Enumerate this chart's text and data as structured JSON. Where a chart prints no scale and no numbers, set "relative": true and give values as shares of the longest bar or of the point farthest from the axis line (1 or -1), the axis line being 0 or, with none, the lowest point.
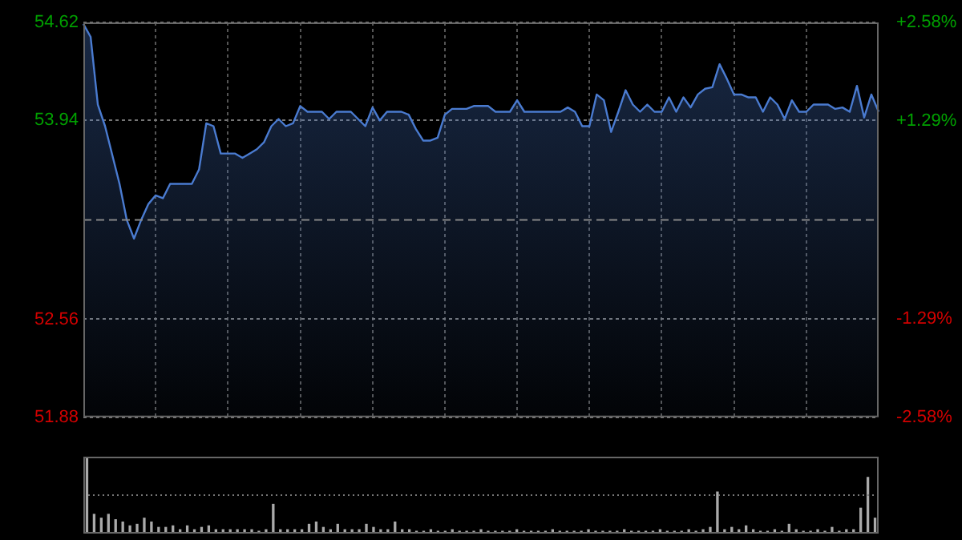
{
  "chart_data": [
    {
      "type": "area",
      "categories": [
        null,
        null,
        null,
        null,
        null,
        null,
        null,
        null,
        null,
        null,
        null,
        null,
        null,
        null,
        null,
        null,
        null,
        null,
        null,
        null,
        null,
        null,
        null,
        null,
        null,
        null,
        null,
        null,
        null,
        null,
        null,
        null,
        null,
        null,
        null,
        null,
        null,
        null,
        null,
        null,
        null,
        null,
        null,
        null,
        null,
        null,
        null,
        null,
        null,
        null,
        null,
        null,
        null,
        null,
        null,
        null,
        null,
        null,
        null,
        null,
        null,
        null,
        null,
        null,
        null,
        null,
        null,
        null,
        null,
        null,
        null,
        null,
        null,
        null,
        null,
        null,
        null,
        null,
        null,
        null,
        null,
        null,
        null,
        null,
        null,
        null,
        null,
        null,
        null,
        null,
        null,
        null,
        null,
        null,
        null,
        null,
        null,
        null,
        null,
        null,
        null,
        null,
        null,
        null,
        null,
        null,
        null,
        null,
        null,
        null,
        null
      ],
      "series": [
        {
          "color": "#4a7bd0",
          "values": [
            54.61,
            54.52,
            54.05,
            53.9,
            53.7,
            53.5,
            53.25,
            53.12,
            53.25,
            53.36,
            53.42,
            53.4,
            53.5,
            53.5,
            53.5,
            53.5,
            53.6,
            53.92,
            53.9,
            53.71,
            53.71,
            53.71,
            53.68,
            53.71,
            53.74,
            53.79,
            53.9,
            53.95,
            53.9,
            53.92,
            54.04,
            54.0,
            54.0,
            54.0,
            53.95,
            54.0,
            54.0,
            54.0,
            53.95,
            53.9,
            54.03,
            53.94,
            54.0,
            54.0,
            54.0,
            53.98,
            53.88,
            53.8,
            53.8,
            53.82,
            53.98,
            54.02,
            54.02,
            54.02,
            54.04,
            54.04,
            54.04,
            54.0,
            54.0,
            54.0,
            54.08,
            54.0,
            54.0,
            54.0,
            54.0,
            54.0,
            54.0,
            54.03,
            54.0,
            53.9,
            53.9,
            54.12,
            54.08,
            53.86,
            54.0,
            54.15,
            54.05,
            54.0,
            54.05,
            54.0,
            54.0,
            54.1,
            54.0,
            54.1,
            54.03,
            54.12,
            54.16,
            54.17,
            54.33,
            54.23,
            54.12,
            54.12,
            54.1,
            54.1,
            54.0,
            54.1,
            54.05,
            53.95,
            54.08,
            54.0,
            54.0,
            54.05,
            54.05,
            54.05,
            54.02,
            54.03,
            54.0,
            54.18,
            53.96,
            54.12,
            54.0
          ]
        }
      ],
      "ylim": [
        51.88,
        54.62
      ],
      "yticks": [
        51.88,
        52.56,
        53.94,
        54.62
      ],
      "y2lim": [
        -2.58,
        2.58
      ],
      "y2ticks": [
        {
          "value": -2.58,
          "label": "-2.58%"
        },
        {
          "value": -1.29,
          "label": "-1.29%"
        },
        {
          "value": 1.29,
          "label": "+1.29%"
        },
        {
          "value": 2.58,
          "label": "+2.58%"
        }
      ],
      "ref_lines": [
        {
          "axis": "y",
          "value": 53.25,
          "line_style": "dashed"
        }
      ],
      "grid": true,
      "legend": false,
      "marker": "none",
      "line_style": "solid"
    },
    {
      "type": "bar",
      "relative": true,
      "categories": [
        null,
        null,
        null,
        null,
        null,
        null,
        null,
        null,
        null,
        null,
        null,
        null,
        null,
        null,
        null,
        null,
        null,
        null,
        null,
        null,
        null,
        null,
        null,
        null,
        null,
        null,
        null,
        null,
        null,
        null,
        null,
        null,
        null,
        null,
        null,
        null,
        null,
        null,
        null,
        null,
        null,
        null,
        null,
        null,
        null,
        null,
        null,
        null,
        null,
        null,
        null,
        null,
        null,
        null,
        null,
        null,
        null,
        null,
        null,
        null,
        null,
        null,
        null,
        null,
        null,
        null,
        null,
        null,
        null,
        null,
        null,
        null,
        null,
        null,
        null,
        null,
        null,
        null,
        null,
        null,
        null,
        null,
        null,
        null,
        null,
        null,
        null,
        null,
        null,
        null,
        null,
        null,
        null,
        null,
        null,
        null,
        null,
        null,
        null,
        null,
        null,
        null,
        null,
        null,
        null,
        null,
        null,
        null,
        null,
        null,
        null
      ],
      "color": "#aaaaaa",
      "values": [
        1,
        0.25,
        0.2,
        0.25,
        0.18,
        0.15,
        0.1,
        0.12,
        0.2,
        0.15,
        0.08,
        0.08,
        0.1,
        0.05,
        0.1,
        0.05,
        0.08,
        0.1,
        0.05,
        0.05,
        0.05,
        0.05,
        0.05,
        0.05,
        0.03,
        0.05,
        0.38,
        0.05,
        0.05,
        0.05,
        0.05,
        0.12,
        0.15,
        0.08,
        0.05,
        0.12,
        0.05,
        0.05,
        0.05,
        0.12,
        0.08,
        0.05,
        0.05,
        0.15,
        0.05,
        0.05,
        0.03,
        0.03,
        0.05,
        0.03,
        0.03,
        0.05,
        0.03,
        0.03,
        0.03,
        0.05,
        0.03,
        0.03,
        0.03,
        0.03,
        0.05,
        0.03,
        0.03,
        0.03,
        0.03,
        0.05,
        0.03,
        0.03,
        0.03,
        0.03,
        0.05,
        0.03,
        0.03,
        0.03,
        0.03,
        0.05,
        0.03,
        0.03,
        0.03,
        0.03,
        0.05,
        0.03,
        0.03,
        0.03,
        0.05,
        0.03,
        0.05,
        0.08,
        0.54,
        0.05,
        0.08,
        0.05,
        0.1,
        0.05,
        0.03,
        0.03,
        0.05,
        0.03,
        0.12,
        0.05,
        0.03,
        0.03,
        0.05,
        0.03,
        0.08,
        0.03,
        0.05,
        0.05,
        0.33,
        0.73,
        0.2
      ],
      "ref_lines": [
        {
          "axis": "y",
          "value": 0.5,
          "line_style": "dotted",
          "color": "#777777"
        }
      ],
      "legend": false
    }
  ]
}
